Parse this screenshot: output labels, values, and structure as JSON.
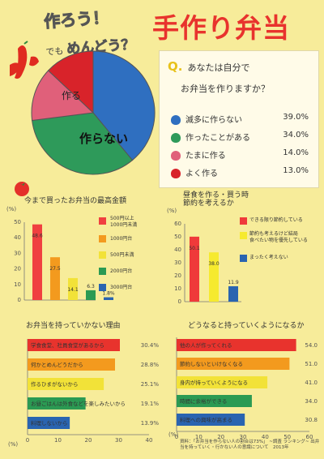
{
  "header": {
    "headline": "作ろう！",
    "subhead_prefix": "でも",
    "subhead_emph": "めんどう？",
    "title": "手作り弁当"
  },
  "question": {
    "q_mark": "Q.",
    "line1": "あなたは自分で",
    "line2": "お弁当を作りますか？",
    "options": [
      {
        "label": "滅多に作らない",
        "pct": "39.0%",
        "color": "#2f6fc0"
      },
      {
        "label": "作ったことがある",
        "pct": "34.0%",
        "color": "#2e9a5a"
      },
      {
        "label": "たまに作る",
        "pct": "14.0%",
        "color": "#e0607a"
      },
      {
        "label": "よく作る",
        "pct": "13.0%",
        "color": "#d8232a"
      }
    ],
    "pie_labels": {
      "make": "作る",
      "dont": "作らない"
    }
  },
  "chart_data": [
    {
      "type": "pie",
      "title": "",
      "categories": [
        "滅多に作らない",
        "作ったことがある",
        "たまに作る",
        "よく作る"
      ],
      "values": [
        39.0,
        34.0,
        14.0,
        13.0
      ],
      "colors": [
        "#2f6fc0",
        "#2e9a5a",
        "#e0607a",
        "#d8232a"
      ]
    },
    {
      "type": "bar",
      "title": "今まで買ったお弁当の最高金額",
      "ylabel": "(%)",
      "ylim": [
        0,
        50
      ],
      "yticks": [
        0,
        10,
        20,
        30,
        40,
        50
      ],
      "categories": [
        "500円以上1000円未満",
        "1000円台",
        "500円未満",
        "2000円台",
        "3000円台"
      ],
      "values": [
        48.6,
        27.5,
        14.1,
        6.3,
        1.8
      ],
      "data_labels": [
        "48.6",
        "27.5",
        "14.1",
        "6.3",
        "1.8%"
      ],
      "colors": [
        "#f04040",
        "#f39a1e",
        "#f2e238",
        "#2b9a53",
        "#2a64b0"
      ],
      "legend": [
        "500円以上\n1000円未満",
        "1000円台",
        "500円未満",
        "2000円台",
        "3000円台"
      ]
    },
    {
      "type": "bar",
      "title": "昼食を作る・買う時\n節約を考えるか",
      "ylabel": "(%)",
      "ylim": [
        0,
        60
      ],
      "yticks": [
        0,
        10,
        20,
        30,
        40,
        50,
        60
      ],
      "categories": [
        "できる限り節約している",
        "節約も考えるけど結局食べたい物を優先している",
        "まったく考えない"
      ],
      "values": [
        50.1,
        38.0,
        11.9
      ],
      "data_labels": [
        "50.1",
        "38.0",
        "11.9"
      ],
      "colors": [
        "#ef3a3a",
        "#f6ea2e",
        "#2a64b0"
      ],
      "legend": [
        "できる限り節約している",
        "節約も考えるけど結局\n食べたい物を優先している",
        "まったく考えない"
      ]
    },
    {
      "type": "bar",
      "orientation": "horizontal",
      "title": "お弁当を持っていかない理由",
      "xlabel": "(%)",
      "xlim": [
        0,
        40
      ],
      "xticks": [
        0,
        10,
        20,
        30,
        40
      ],
      "categories": [
        "学食食堂、社員食堂があるから",
        "何かとめんどうだから",
        "作るひまがないから",
        "お昼ごはんは外食などを楽しみたいから",
        "料理しないから"
      ],
      "values": [
        30.4,
        28.8,
        25.1,
        19.1,
        13.9
      ],
      "data_labels": [
        "30.4%",
        "28.8%",
        "25.1%",
        "19.1%",
        "13.9%"
      ],
      "colors": [
        "#e8332d",
        "#f39a1e",
        "#f2e238",
        "#2b9a53",
        "#2a64b0"
      ]
    },
    {
      "type": "bar",
      "orientation": "horizontal",
      "title": "どうなると持っていくようになるか",
      "xlabel": "(%)",
      "xlim": [
        0,
        60
      ],
      "xticks": [
        0,
        10,
        20,
        30,
        40,
        50,
        60
      ],
      "categories": [
        "他の人が作ってくれる",
        "節約しないといけなくなる",
        "身内が持っていくようになる",
        "時間に余裕ができる",
        "料理への興味が高まる"
      ],
      "values": [
        54.0,
        51.0,
        41.0,
        34.0,
        30.8
      ],
      "data_labels": [
        "54.0",
        "51.0",
        "41.0",
        "34.0",
        "30.8"
      ],
      "colors": [
        "#e8332d",
        "#f39a1e",
        "#f2e238",
        "#2b9a53",
        "#2a64b0"
      ]
    }
  ],
  "footnote": "資料：「お弁当を作らない人の割合は73%」 ~調査 ランキング~ 出弁当を持っていく・行かない人の意識について　2013年"
}
